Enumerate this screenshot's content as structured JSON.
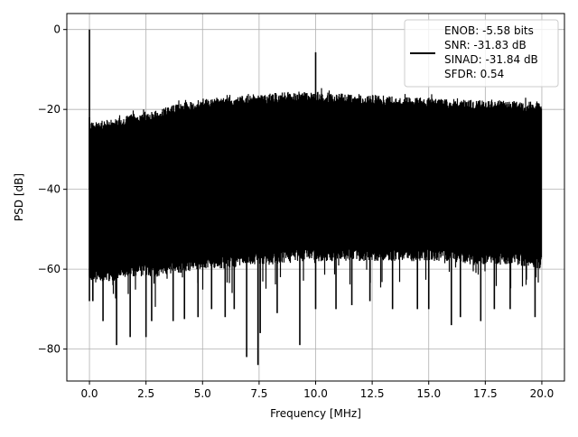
{
  "chart_data": {
    "type": "line",
    "title": "",
    "xlabel": "Frequency [MHz]",
    "ylabel": "PSD [dB]",
    "xlim": [
      -1.0,
      21.0
    ],
    "ylim": [
      -88.0,
      4.0
    ],
    "xticks": [
      0.0,
      2.5,
      5.0,
      7.5,
      10.0,
      12.5,
      15.0,
      17.5,
      20.0
    ],
    "xtick_labels": [
      "0.0",
      "2.5",
      "5.0",
      "7.5",
      "10.0",
      "12.5",
      "15.0",
      "17.5",
      "20.0"
    ],
    "yticks": [
      0,
      -20,
      -40,
      -60,
      -80
    ],
    "ytick_labels": [
      "0",
      "−20",
      "−40",
      "−60",
      "−80"
    ],
    "grid": true,
    "legend": {
      "placement": "top-right",
      "entries": [
        "ENOB: -5.58 bits",
        "SNR: -31.83 dB",
        "SINAD: -31.84 dB",
        "SFDR: 0.54"
      ]
    },
    "series": [
      {
        "name": "PSD",
        "color": "#000000",
        "envelope_freq": [
          0.1,
          1,
          2,
          3,
          4,
          5,
          6,
          7,
          8,
          9,
          10,
          11,
          12,
          13,
          14,
          15,
          16,
          17,
          18,
          19,
          20
        ],
        "envelope_upper": [
          -22,
          -21.5,
          -20,
          -19,
          -17.5,
          -16.5,
          -16,
          -15.5,
          -15,
          -14.5,
          -14.5,
          -15,
          -15,
          -15.5,
          -16,
          -16,
          -16.5,
          -16.5,
          -16.5,
          -17,
          -17
        ],
        "envelope_lower": [
          -60,
          -60,
          -59,
          -59,
          -58,
          -57,
          -57,
          -56,
          -56,
          -55,
          -55,
          -55,
          -55,
          -55,
          -55,
          -55,
          -55,
          -56,
          -56,
          -56,
          -57
        ],
        "peaks": [
          {
            "x": 0.0,
            "y": 0.0
          },
          {
            "x": 10.0,
            "y": -5.7
          }
        ],
        "notches": [
          [
            0.15,
            -68
          ],
          [
            0.6,
            -73
          ],
          [
            1.2,
            -79
          ],
          [
            1.8,
            -77
          ],
          [
            2.5,
            -77
          ],
          [
            2.75,
            -73
          ],
          [
            3.7,
            -73
          ],
          [
            4.2,
            -72.5
          ],
          [
            4.8,
            -72
          ],
          [
            5.4,
            -70
          ],
          [
            6.0,
            -72
          ],
          [
            6.4,
            -70
          ],
          [
            6.95,
            -82
          ],
          [
            7.45,
            -84
          ],
          [
            7.55,
            -76
          ],
          [
            8.3,
            -71
          ],
          [
            9.3,
            -79
          ],
          [
            10.0,
            -70
          ],
          [
            10.9,
            -70
          ],
          [
            11.6,
            -69
          ],
          [
            12.4,
            -68
          ],
          [
            13.4,
            -70
          ],
          [
            14.5,
            -70
          ],
          [
            15.0,
            -70
          ],
          [
            16.0,
            -74
          ],
          [
            16.4,
            -72
          ],
          [
            17.3,
            -73
          ],
          [
            17.9,
            -70
          ],
          [
            18.6,
            -70
          ],
          [
            19.7,
            -72
          ]
        ]
      }
    ]
  }
}
